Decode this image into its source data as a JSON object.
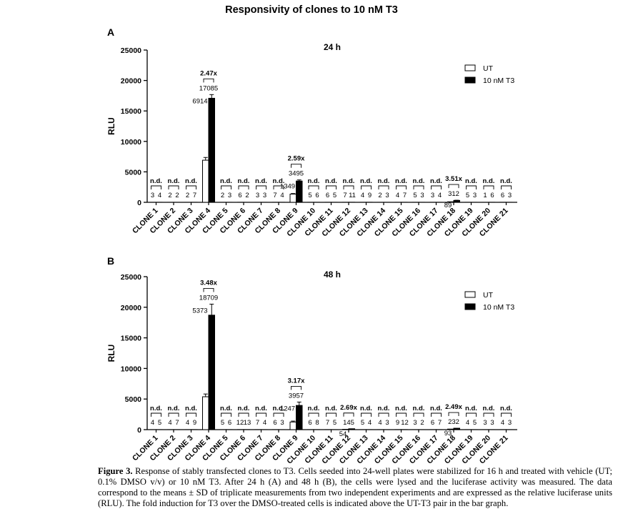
{
  "title": "Responsivity of clones to 10 nM T3",
  "caption": {
    "label": "Figure 3.",
    "text": "Response of stably transfected clones to T3. Cells seeded into 24-well plates were stabilized for 16 h and treated with vehicle (UT; 0.1% DMSO v/v) or 10 nM T3. After 24 h (A) and 48 h (B), the cells were lysed and the luciferase activity was measured. The data correspond to the means ± SD of triplicate measurements from two independent experiments and are expressed as the relative luciferase units (RLU). The fold induction for T3 over the DMSO-treated cells is indicated above the UT-T3 pair in the bar graph."
  },
  "chart_data": [
    {
      "panel": "A",
      "type": "bar",
      "title": "24 h",
      "ylabel": "RLU",
      "xlabel": "",
      "ylim": [
        0,
        25000
      ],
      "yticks": [
        0,
        5000,
        10000,
        15000,
        20000,
        25000
      ],
      "legend": {
        "position": "top-right",
        "entries": [
          "UT",
          "10 nM T3"
        ],
        "colors": [
          "#ffffff",
          "#000000"
        ]
      },
      "categories": [
        "CLONE 1",
        "CLONE 2",
        "CLONE 3",
        "CLONE 4",
        "CLONE 5",
        "CLONE 6",
        "CLONE 7",
        "CLONE 8",
        "CLONE 9",
        "CLONE 10",
        "CLONE 11",
        "CLONE 12",
        "CLONE 13",
        "CLONE 14",
        "CLONE 15",
        "CLONE 16",
        "CLONE 17",
        "CLONE 18",
        "CLONE 19",
        "CLONE 20",
        "CLONE 21"
      ],
      "series": [
        {
          "name": "UT",
          "values": [
            3,
            2,
            2,
            6914,
            2,
            6,
            3,
            7,
            1349,
            5,
            6,
            7,
            4,
            2,
            4,
            5,
            3,
            89,
            5,
            1,
            6
          ],
          "errors": [
            0,
            0,
            0,
            450,
            0,
            0,
            0,
            0,
            90,
            0,
            0,
            0,
            0,
            0,
            0,
            0,
            0,
            0,
            0,
            0,
            0
          ]
        },
        {
          "name": "10 nM T3",
          "values": [
            4,
            2,
            7,
            17085,
            3,
            2,
            3,
            4,
            3495,
            6,
            5,
            11,
            9,
            3,
            7,
            3,
            4,
            312,
            3,
            6,
            3
          ],
          "errors": [
            0,
            0,
            0,
            600,
            0,
            0,
            0,
            0,
            180,
            0,
            0,
            0,
            0,
            0,
            0,
            0,
            0,
            30,
            0,
            0,
            0
          ]
        }
      ],
      "annotations": {
        "nd_label": "n.d.",
        "fold_induction": [
          {
            "clone": "CLONE 4",
            "text": "2.47x"
          },
          {
            "clone": "CLONE 9",
            "text": "2.59x"
          },
          {
            "clone": "CLONE 18",
            "text": "3.51x"
          }
        ]
      }
    },
    {
      "panel": "B",
      "type": "bar",
      "title": "48 h",
      "ylabel": "RLU",
      "xlabel": "",
      "ylim": [
        0,
        25000
      ],
      "yticks": [
        0,
        5000,
        10000,
        15000,
        20000,
        25000
      ],
      "legend": {
        "position": "top-right",
        "entries": [
          "UT",
          "10 nM T3"
        ],
        "colors": [
          "#ffffff",
          "#000000"
        ]
      },
      "categories": [
        "CLONE 1",
        "CLONE 2",
        "CLONE 3",
        "CLONE 4",
        "CLONE 5",
        "CLONE 6",
        "CLONE 7",
        "CLONE 8",
        "CLONE 9",
        "CLONE 10",
        "CLONE 11",
        "CLONE 12",
        "CLONE 13",
        "CLONE 14",
        "CLONE 15",
        "CLONE 16",
        "CLONE 17",
        "CLONE 18",
        "CLONE 19",
        "CLONE 20",
        "CLONE 21"
      ],
      "series": [
        {
          "name": "UT",
          "values": [
            4,
            4,
            4,
            5373,
            5,
            12,
            7,
            6,
            1247,
            6,
            7,
            54,
            5,
            4,
            9,
            3,
            6,
            93,
            4,
            3,
            4
          ],
          "errors": [
            0,
            0,
            0,
            450,
            0,
            0,
            0,
            0,
            150,
            0,
            0,
            0,
            0,
            0,
            0,
            0,
            0,
            0,
            0,
            0,
            0
          ]
        },
        {
          "name": "10 nM T3",
          "values": [
            5,
            7,
            9,
            18709,
            6,
            13,
            4,
            3,
            3957,
            8,
            5,
            145,
            4,
            3,
            12,
            2,
            7,
            232,
            5,
            3,
            3
          ],
          "errors": [
            0,
            0,
            0,
            1800,
            0,
            0,
            0,
            0,
            550,
            0,
            0,
            0,
            0,
            0,
            0,
            0,
            0,
            0,
            0,
            0,
            0
          ]
        }
      ],
      "annotations": {
        "nd_label": "n.d.",
        "fold_induction": [
          {
            "clone": "CLONE 4",
            "text": "3.48x"
          },
          {
            "clone": "CLONE 9",
            "text": "3.17x"
          },
          {
            "clone": "CLONE 12",
            "text": "2.69x"
          },
          {
            "clone": "CLONE 18",
            "text": "2.49x"
          }
        ]
      }
    }
  ]
}
